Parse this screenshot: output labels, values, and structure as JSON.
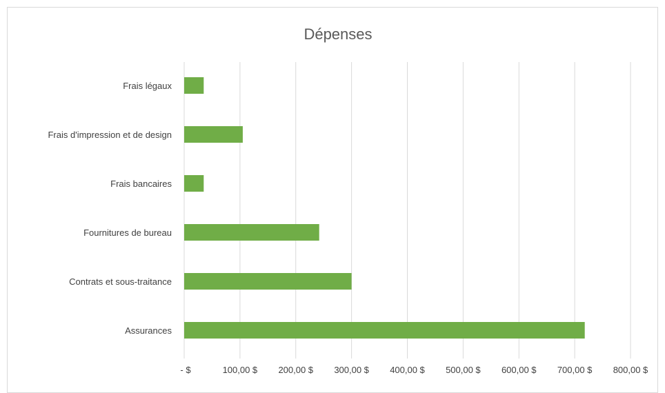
{
  "chart_data": {
    "type": "bar",
    "orientation": "horizontal",
    "title": "Dépenses",
    "categories": [
      "Frais légaux",
      "Frais d'impression et de design",
      "Frais bancaires",
      "Fournitures de bureau",
      "Contrats et sous-traitance",
      "Assurances"
    ],
    "values": [
      35,
      105,
      35,
      242,
      300,
      718
    ],
    "xlim": [
      0,
      800
    ],
    "x_ticks": [
      0,
      100,
      200,
      300,
      400,
      500,
      600,
      700,
      800
    ],
    "x_tick_labels": [
      "-   $",
      "100,00 $",
      "200,00 $",
      "300,00 $",
      "400,00 $",
      "500,00 $",
      "600,00 $",
      "700,00 $",
      "800,00 $"
    ],
    "grid": "vertical",
    "legend": "none",
    "bar_color": "#70ad47",
    "grid_color": "#d9d9d9"
  }
}
